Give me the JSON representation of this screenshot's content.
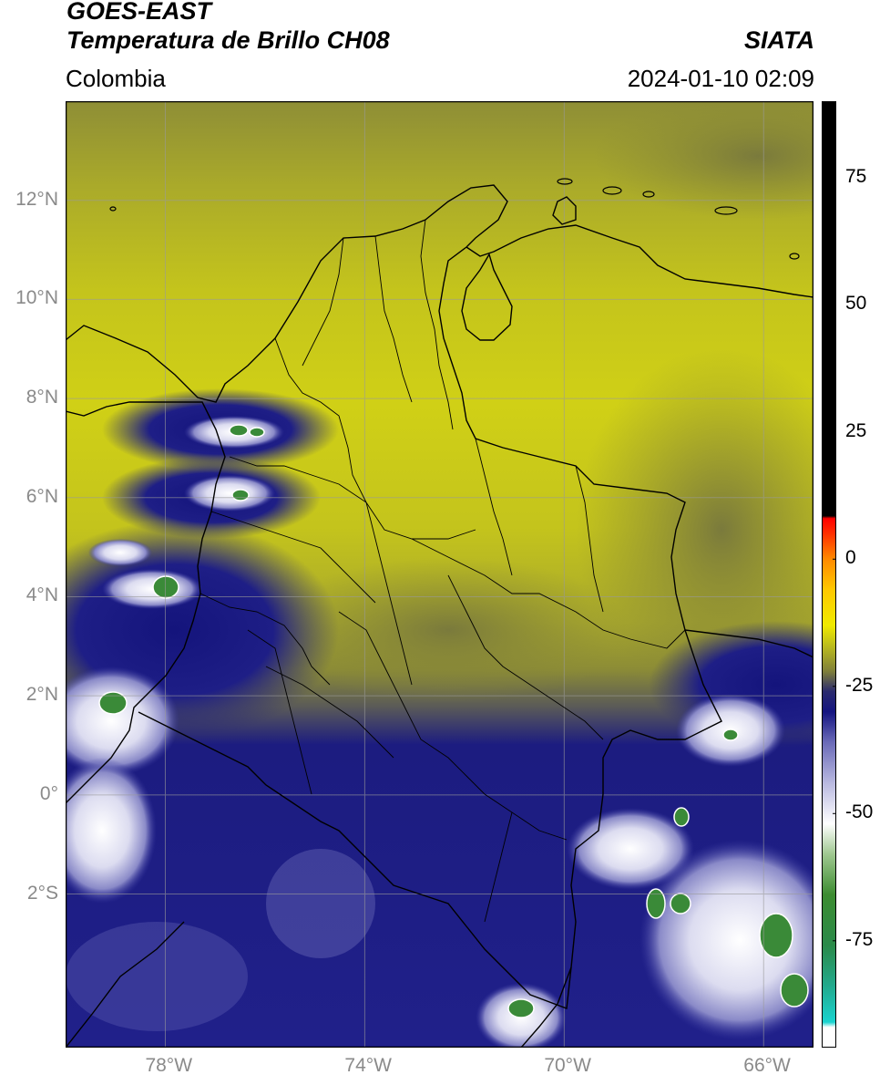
{
  "header": {
    "satellite": "GOES-EAST",
    "product": "Temperatura de Brillo CH08",
    "region": "Colombia",
    "agency": "SIATA",
    "datetime": "2024-01-10 02:09"
  },
  "map": {
    "lon_range": [
      -80,
      -65
    ],
    "lat_range": [
      -5.1,
      14
    ],
    "gridlines": true,
    "lon_ticks": [
      {
        "value": -78,
        "label": "78°W"
      },
      {
        "value": -74,
        "label": "74°W"
      },
      {
        "value": -70,
        "label": "70°W"
      },
      {
        "value": -66,
        "label": "66°W"
      }
    ],
    "lat_ticks": [
      {
        "value": 12,
        "label": "12°N"
      },
      {
        "value": 10,
        "label": "10°N"
      },
      {
        "value": 8,
        "label": "8°N"
      },
      {
        "value": 6,
        "label": "6°N"
      },
      {
        "value": 4,
        "label": "4°N"
      },
      {
        "value": 2,
        "label": "2°N"
      },
      {
        "value": 0,
        "label": "0°"
      },
      {
        "value": -2,
        "label": "2°S"
      }
    ]
  },
  "colorbar": {
    "range": [
      -96,
      90
    ],
    "ticks": [
      {
        "value": 75,
        "label": "75"
      },
      {
        "value": 50,
        "label": "50"
      },
      {
        "value": 25,
        "label": "25"
      },
      {
        "value": 0,
        "label": "0"
      },
      {
        "value": -25,
        "label": "-25"
      },
      {
        "value": -50,
        "label": "-50"
      },
      {
        "value": -75,
        "label": "-75"
      }
    ],
    "stops": [
      {
        "value": -96,
        "color": "#ffffff"
      },
      {
        "value": -92,
        "color": "#ffffff"
      },
      {
        "value": -91,
        "color": "#19d3cf"
      },
      {
        "value": -84,
        "color": "#22aa8e"
      },
      {
        "value": -76,
        "color": "#2a8a4a"
      },
      {
        "value": -66,
        "color": "#3c8c30"
      },
      {
        "value": -58,
        "color": "#9fc890"
      },
      {
        "value": -52,
        "color": "#ffffff"
      },
      {
        "value": -44,
        "color": "#b9b9e0"
      },
      {
        "value": -36,
        "color": "#6a6ab8"
      },
      {
        "value": -30,
        "color": "#141480"
      },
      {
        "value": -26,
        "color": "#2a2a6e"
      },
      {
        "value": -22,
        "color": "#80803a"
      },
      {
        "value": -17,
        "color": "#bcbc1c"
      },
      {
        "value": -13,
        "color": "#f0ea00"
      },
      {
        "value": -6,
        "color": "#ffc800"
      },
      {
        "value": 0,
        "color": "#ff8a00"
      },
      {
        "value": 5,
        "color": "#ff3000"
      },
      {
        "value": 8,
        "color": "#ff0000"
      },
      {
        "value": 8.5,
        "color": "#000000"
      },
      {
        "value": 90,
        "color": "#000000"
      }
    ]
  },
  "colors": {
    "cold_cloud_blue": "#1a1a80",
    "dry_yellow": "#c6c618",
    "olive": "#8c8c34",
    "deep_convection_green": "#3a8a38",
    "coastline": "#000000",
    "gridline": "#9a9a9a"
  }
}
